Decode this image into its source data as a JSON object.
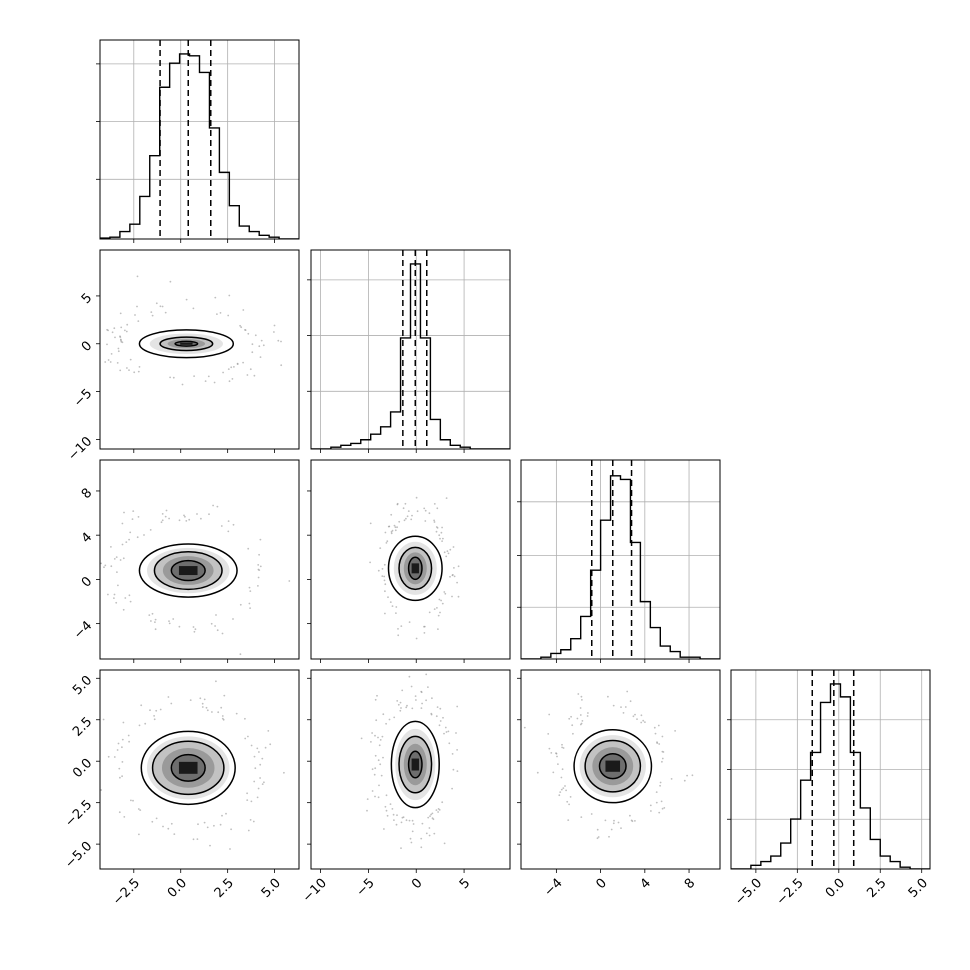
{
  "chart_data": {
    "type": "corner",
    "n_params": 4,
    "ranges": [
      [
        -4.3,
        6.3
      ],
      [
        -11.0,
        9.8
      ],
      [
        -7.2,
        10.8
      ],
      [
        -6.5,
        5.5
      ]
    ],
    "x_ticks": [
      {
        "values": [
          -2.5,
          0.0,
          2.5,
          5.0
        ],
        "labels": [
          "−2.5",
          "0.0",
          "2.5",
          "5.0"
        ]
      },
      {
        "values": [
          -10,
          -5,
          0,
          5
        ],
        "labels": [
          "−10",
          "−5",
          "0",
          "5"
        ]
      },
      {
        "values": [
          -4,
          0,
          4,
          8
        ],
        "labels": [
          "−4",
          "0",
          "4",
          "8"
        ]
      },
      {
        "values": [
          -5.0,
          -2.5,
          0.0,
          2.5,
          5.0
        ],
        "labels": [
          "−5.0",
          "−2.5",
          "0.0",
          "2.5",
          "5.0"
        ]
      }
    ],
    "y_ticks": [
      null,
      {
        "values": [
          -10,
          -5,
          0,
          5
        ],
        "labels": [
          "−10",
          "−5",
          "0",
          "5"
        ]
      },
      {
        "values": [
          -4,
          0,
          4,
          8
        ],
        "labels": [
          "−4",
          "0",
          "4",
          "8"
        ]
      },
      {
        "values": [
          -5.0,
          -2.5,
          0.0,
          2.5,
          5.0
        ],
        "labels": [
          "−5.0",
          "−2.5",
          "0.0",
          "2.5",
          "5.0"
        ]
      }
    ],
    "histograms": [
      {
        "edges": [
          -4.3,
          -3.77,
          -3.24,
          -2.71,
          -2.18,
          -1.65,
          -1.12,
          -0.59,
          -0.06,
          0.47,
          1.0,
          1.53,
          2.06,
          2.59,
          3.12,
          3.65,
          4.18,
          4.71,
          5.24,
          5.77,
          6.3
        ],
        "counts": [
          0.005,
          0.01,
          0.04,
          0.08,
          0.23,
          0.45,
          0.82,
          0.95,
          1.0,
          0.99,
          0.9,
          0.6,
          0.36,
          0.18,
          0.07,
          0.04,
          0.02,
          0.01,
          0.0,
          0.0
        ],
        "quantiles": [
          -1.1,
          0.4,
          1.6
        ],
        "gridlines": [
          0.3,
          0.59,
          0.88
        ]
      },
      {
        "edges": [
          -11.0,
          -9.96,
          -8.92,
          -7.88,
          -6.84,
          -5.8,
          -4.76,
          -3.72,
          -2.68,
          -1.64,
          -0.6,
          0.44,
          1.48,
          2.52,
          3.56,
          4.6,
          5.64,
          6.68,
          7.72,
          8.76,
          9.8
        ],
        "counts": [
          0.0,
          0.0,
          0.01,
          0.02,
          0.03,
          0.05,
          0.08,
          0.12,
          0.2,
          0.6,
          1.0,
          0.6,
          0.16,
          0.05,
          0.02,
          0.01,
          0.0,
          0.0,
          0.0,
          0.0
        ],
        "quantiles": [
          -1.4,
          -0.1,
          1.1
        ],
        "gridlines": [
          0.29,
          0.57,
          0.85
        ]
      },
      {
        "edges": [
          -7.2,
          -6.3,
          -5.4,
          -4.5,
          -3.6,
          -2.7,
          -1.8,
          -0.9,
          0.0,
          0.9,
          1.8,
          2.7,
          3.6,
          4.5,
          5.4,
          6.3,
          7.2,
          8.1,
          9.0,
          9.9,
          10.8
        ],
        "counts": [
          0.0,
          0.0,
          0.01,
          0.03,
          0.05,
          0.11,
          0.23,
          0.48,
          0.75,
          0.99,
          0.97,
          0.63,
          0.31,
          0.17,
          0.07,
          0.04,
          0.01,
          0.01,
          0.0,
          0.0
        ],
        "quantiles": [
          -0.8,
          1.1,
          2.8
        ],
        "gridlines": [
          0.26,
          0.52,
          0.79
        ]
      },
      {
        "edges": [
          -6.5,
          -5.9,
          -5.3,
          -4.7,
          -4.1,
          -3.5,
          -2.9,
          -2.3,
          -1.7,
          -1.1,
          -0.5,
          0.1,
          0.7,
          1.3,
          1.9,
          2.5,
          3.1,
          3.7,
          4.3,
          4.9,
          5.5
        ],
        "counts": [
          0.0,
          0.0,
          0.02,
          0.04,
          0.07,
          0.14,
          0.27,
          0.48,
          0.63,
          0.9,
          1.0,
          0.93,
          0.63,
          0.33,
          0.16,
          0.07,
          0.04,
          0.01,
          0.0,
          0.0
        ],
        "quantiles": [
          -1.6,
          -0.3,
          0.9
        ],
        "gridlines": [
          0.25,
          0.5,
          0.75
        ]
      }
    ],
    "pairs": [
      {
        "row": 1,
        "col": 0,
        "cx": 0.3,
        "cy": 0.0,
        "sx": 1.6,
        "sy": 1.6,
        "contours": [
          [
            2.5,
            1.45
          ],
          [
            1.4,
            0.7
          ],
          [
            0.6,
            0.25
          ]
        ]
      },
      {
        "row": 2,
        "col": 0,
        "cx": 0.4,
        "cy": 0.8,
        "sx": 1.6,
        "sy": 2.1,
        "contours": [
          [
            2.6,
            2.4
          ],
          [
            1.8,
            1.7
          ],
          [
            0.9,
            0.9
          ]
        ]
      },
      {
        "row": 2,
        "col": 1,
        "cx": -0.1,
        "cy": 1.0,
        "sx": 1.5,
        "sy": 2.1,
        "contours": [
          [
            2.8,
            2.9
          ],
          [
            1.7,
            1.9
          ],
          [
            0.7,
            1.0
          ]
        ]
      },
      {
        "row": 3,
        "col": 0,
        "cx": 0.4,
        "cy": -0.4,
        "sx": 1.6,
        "sy": 1.6,
        "contours": [
          [
            2.5,
            2.2
          ],
          [
            1.9,
            1.6
          ],
          [
            0.9,
            0.8
          ]
        ]
      },
      {
        "row": 3,
        "col": 1,
        "cx": -0.1,
        "cy": -0.2,
        "sx": 1.6,
        "sy": 1.6,
        "contours": [
          [
            2.5,
            2.6
          ],
          [
            1.7,
            1.7
          ],
          [
            0.7,
            0.8
          ]
        ]
      },
      {
        "row": 3,
        "col": 2,
        "cx": 1.1,
        "cy": -0.3,
        "sx": 2.1,
        "sy": 1.5,
        "contours": [
          [
            3.5,
            2.2
          ],
          [
            2.5,
            1.55
          ],
          [
            1.2,
            0.75
          ]
        ]
      }
    ]
  }
}
